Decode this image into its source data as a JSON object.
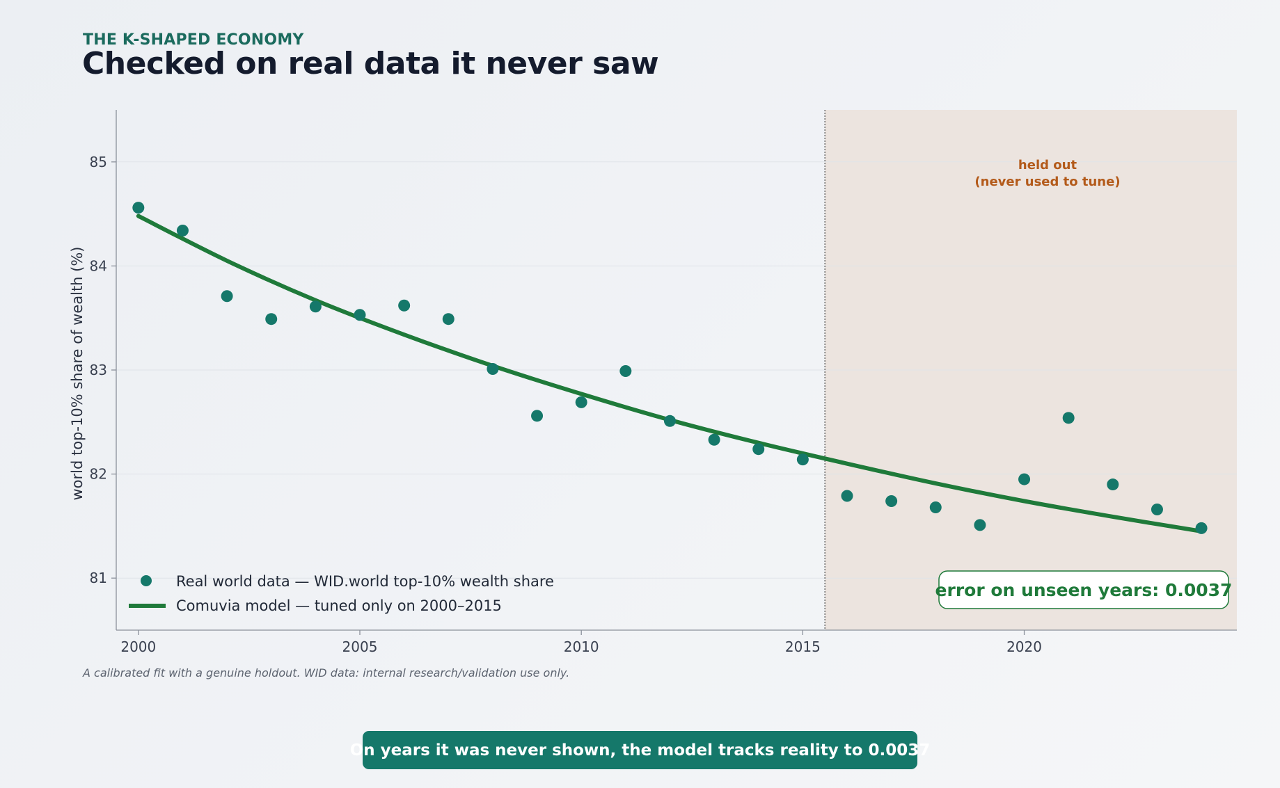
{
  "header": {
    "kicker": "THE K-SHAPED ECONOMY",
    "title": "Checked on real data it never saw"
  },
  "caption": "A calibrated fit with a genuine holdout. WID data: internal research/validation use only.",
  "banner": "On years it was never shown, the model tracks reality to 0.0037",
  "colors": {
    "data_points": "#15786a",
    "model_line": "#1f7a3a",
    "holdout_shade": "#ece4df",
    "holdout_text": "#b35a1a",
    "banner_bg": "#15786a"
  },
  "chart_data": {
    "type": "scatter",
    "title": "Checked on real data it never saw",
    "xlabel": "",
    "ylabel": "world top-10% share of wealth (%)",
    "xlim": [
      1999.5,
      2024.8
    ],
    "ylim": [
      80.5,
      85.5
    ],
    "x_ticks": [
      2000,
      2005,
      2010,
      2015,
      2020
    ],
    "y_ticks": [
      81,
      82,
      83,
      84,
      85
    ],
    "grid": "horizontal",
    "legend_position": "bottom-left",
    "series": [
      {
        "name": "Real world data — WID.world top-10% wealth share",
        "kind": "scatter",
        "x": [
          2000,
          2001,
          2002,
          2003,
          2004,
          2005,
          2006,
          2007,
          2008,
          2009,
          2010,
          2011,
          2012,
          2013,
          2014,
          2015,
          2016,
          2017,
          2018,
          2019,
          2020,
          2021,
          2022,
          2023,
          2024
        ],
        "y": [
          84.56,
          84.34,
          83.71,
          83.49,
          83.61,
          83.53,
          83.62,
          83.49,
          83.01,
          82.56,
          82.69,
          82.99,
          82.51,
          82.33,
          82.24,
          82.14,
          81.79,
          81.74,
          81.68,
          81.51,
          81.95,
          82.54,
          81.9,
          81.66,
          81.48
        ]
      },
      {
        "name": "Comuvia model — tuned only on 2000–2015",
        "kind": "line",
        "x": [
          2000,
          2002,
          2004,
          2006,
          2008,
          2010,
          2012,
          2014,
          2016,
          2018,
          2020,
          2022,
          2024
        ],
        "y": [
          84.48,
          84.05,
          83.67,
          83.34,
          83.04,
          82.77,
          82.52,
          82.3,
          82.1,
          81.91,
          81.74,
          81.59,
          81.45
        ]
      }
    ],
    "holdout": {
      "start": 2015.5,
      "end": 2024.8,
      "label_line1": "held out",
      "label_line2": "(never used to tune)"
    },
    "error_box": "error on unseen years: 0.0037"
  }
}
